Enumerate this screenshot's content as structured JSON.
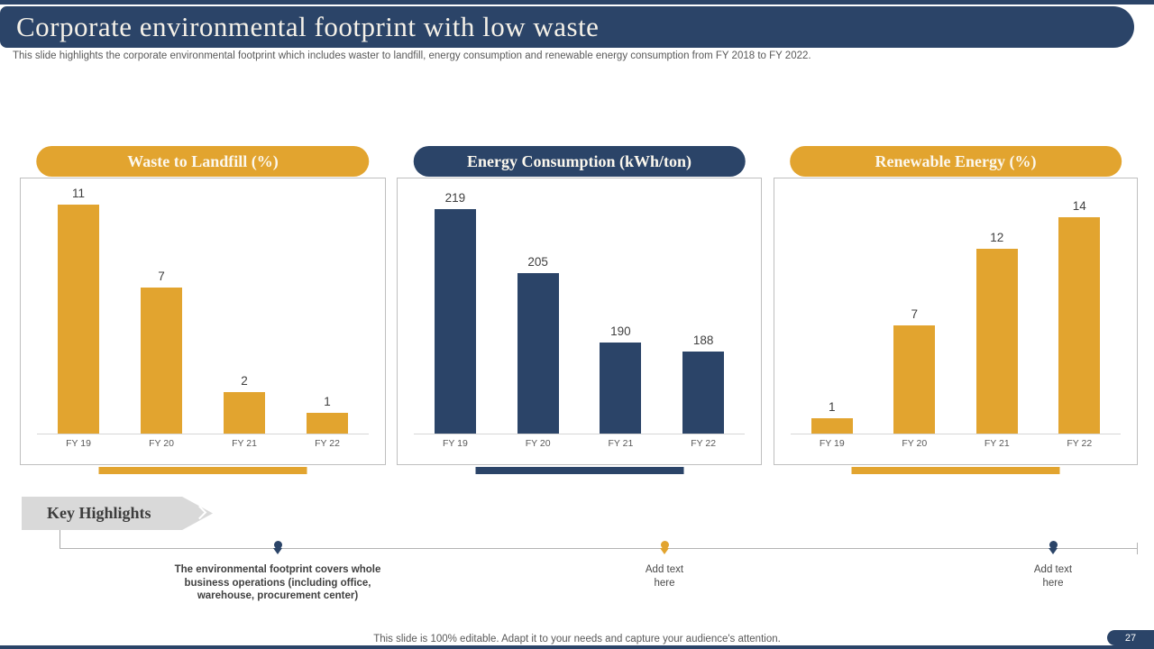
{
  "slide": {
    "title": "Corporate environmental footprint with low waste",
    "subtitle": "This slide highlights the corporate environmental footprint which includes waster to landfill, energy consumption and renewable energy consumption from FY 2018 to FY 2022.",
    "footer_note": "This slide is 100% editable. Adapt it to your needs and capture your audience's attention.",
    "page_number": "27"
  },
  "colors": {
    "navy": "#2B4468",
    "orange": "#E2A42F",
    "border_gray": "#BFBFBF",
    "text_gray": "#595959",
    "arrow_gray": "#D9D9D9"
  },
  "key_highlights": {
    "label": "Key Highlights",
    "items": [
      {
        "text": "The environmental footprint covers whole business operations (including office, warehouse, procurement center)",
        "marker_color": "navy",
        "bold": true
      },
      {
        "text": "Add text here",
        "marker_color": "gold",
        "bold": false
      },
      {
        "text": "Add text here",
        "marker_color": "navy",
        "bold": false
      }
    ]
  },
  "chart_data": [
    {
      "type": "bar",
      "title": "Waste to Landfill (%)",
      "categories": [
        "FY 19",
        "FY 20",
        "FY 21",
        "FY 22"
      ],
      "values": [
        11,
        7,
        2,
        1
      ],
      "bar_color": "#E2A42F",
      "header_color": "#E2A42F",
      "ylim": [
        0,
        12.3
      ],
      "data_labels": true,
      "grid": false,
      "legend_position": "none"
    },
    {
      "type": "bar",
      "title": "Energy Consumption (kWh/ton)",
      "categories": [
        "FY 19",
        "FY 20",
        "FY 21",
        "FY 22"
      ],
      "values": [
        219,
        205,
        190,
        188
      ],
      "bar_color": "#2B4468",
      "header_color": "#2B4468",
      "ylim": [
        170,
        226
      ],
      "data_labels": true,
      "grid": false,
      "legend_position": "none"
    },
    {
      "type": "bar",
      "title": "Renewable Energy (%)",
      "categories": [
        "FY 19",
        "FY 20",
        "FY 21",
        "FY 22"
      ],
      "values": [
        1,
        7,
        12,
        14
      ],
      "bar_color": "#E2A42F",
      "header_color": "#E2A42F",
      "ylim": [
        0,
        16.6
      ],
      "data_labels": true,
      "grid": false,
      "legend_position": "none"
    }
  ]
}
